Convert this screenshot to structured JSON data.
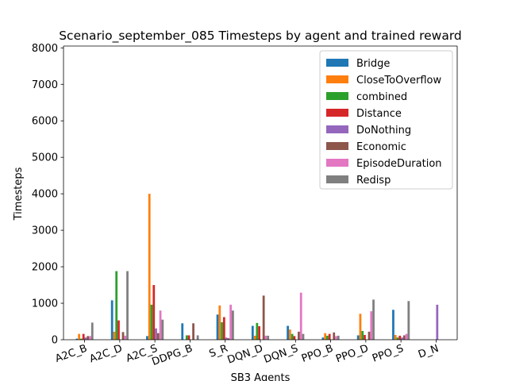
{
  "chart_data": {
    "type": "bar",
    "title": "Scenario_september_085 Timesteps by agent and trained reward",
    "xlabel": "SB3 Agents",
    "ylabel": "Timesteps",
    "ylim": [
      0,
      8050
    ],
    "yticks": [
      0,
      1000,
      2000,
      3000,
      4000,
      5000,
      6000,
      7000,
      8000
    ],
    "grid": false,
    "legend_position": "top-right",
    "categories": [
      "A2C_B",
      "A2C_D",
      "A2C_S",
      "DDPG_B",
      "S_R",
      "DQN_D",
      "DQN_S",
      "PPO_B",
      "PPO_D",
      "PPO_S",
      "D_N"
    ],
    "series": [
      {
        "name": "Bridge",
        "color": "#1f77b4",
        "values": [
          30,
          1080,
          100,
          450,
          690,
          380,
          380,
          60,
          120,
          820,
          0
        ]
      },
      {
        "name": "CloseToOverflow",
        "color": "#ff7f0e",
        "values": [
          160,
          220,
          4000,
          0,
          940,
          110,
          280,
          180,
          710,
          130,
          0
        ]
      },
      {
        "name": "combined",
        "color": "#2ca02c",
        "values": [
          30,
          1880,
          960,
          120,
          480,
          460,
          160,
          110,
          240,
          60,
          0
        ]
      },
      {
        "name": "Distance",
        "color": "#d62728",
        "values": [
          160,
          530,
          1500,
          120,
          620,
          370,
          100,
          160,
          130,
          110,
          0
        ]
      },
      {
        "name": "DoNothing",
        "color": "#9467bd",
        "values": [
          60,
          0,
          310,
          0,
          60,
          0,
          0,
          0,
          0,
          60,
          960
        ]
      },
      {
        "name": "Economic",
        "color": "#8c564b",
        "values": [
          100,
          210,
          180,
          450,
          40,
          1210,
          220,
          200,
          220,
          120,
          0
        ]
      },
      {
        "name": "EpisodeDuration",
        "color": "#e377c2",
        "values": [
          100,
          110,
          800,
          0,
          960,
          110,
          1290,
          100,
          780,
          160,
          0
        ]
      },
      {
        "name": "Redisp",
        "color": "#7f7f7f",
        "values": [
          470,
          1880,
          550,
          120,
          800,
          110,
          160,
          110,
          1100,
          1060,
          0
        ]
      }
    ]
  }
}
